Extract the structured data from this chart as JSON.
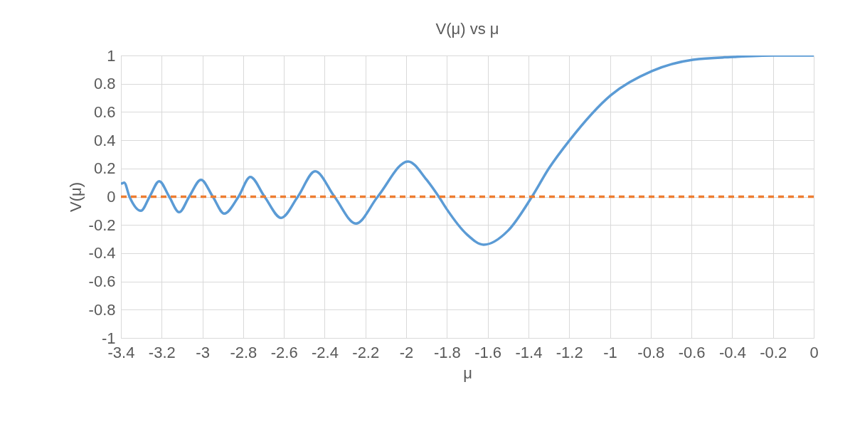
{
  "chart_data": {
    "type": "line",
    "title": "V(μ) vs μ",
    "xlabel": "μ",
    "ylabel": "V(μ)",
    "xlim": [
      -3.4,
      0
    ],
    "xticks": [
      -3.4,
      -3.2,
      -3,
      -2.8,
      -2.6,
      -2.4,
      -2.2,
      -2,
      -1.8,
      -1.6,
      -1.4,
      -1.2,
      -1,
      -0.8,
      -0.6,
      -0.4,
      -0.2,
      0
    ],
    "ylim": [
      -1,
      1
    ],
    "yticks": [
      -1,
      -0.8,
      -0.6,
      -0.4,
      -0.2,
      0,
      0.2,
      0.4,
      0.6,
      0.8,
      1
    ],
    "grid": true,
    "legend": false,
    "marker": "none",
    "series": [
      {
        "color": "#5b9bd5",
        "line_style": "solid",
        "x": [
          -3.4,
          -3.384,
          -3.358,
          -3.302,
          -3.259,
          -3.212,
          -3.163,
          -3.114,
          -3.065,
          -3.007,
          -2.949,
          -2.893,
          -2.823,
          -2.765,
          -2.695,
          -2.614,
          -2.532,
          -2.447,
          -2.352,
          -2.247,
          -2.14,
          -1.991,
          -1.9,
          -1.84,
          -1.8,
          -1.7,
          -1.62,
          -1.5,
          -1.383,
          -1.3,
          -1.198,
          -0.995,
          -0.794,
          -0.593,
          -0.391,
          -0.2,
          0
        ],
        "values": [
          0.09,
          0.1,
          0,
          -0.1,
          0,
          0.11,
          0,
          -0.11,
          0,
          0.12,
          0,
          -0.12,
          0,
          0.14,
          0,
          -0.15,
          0,
          0.18,
          0,
          -0.19,
          0,
          0.25,
          0.12,
          0,
          -0.09,
          -0.27,
          -0.34,
          -0.24,
          0,
          0.2,
          0.4,
          0.72,
          0.89,
          0.97,
          0.99,
          1,
          1
        ]
      },
      {
        "color": "#ed7d31",
        "line_style": "dashed",
        "x": [
          -3.4,
          0
        ],
        "values": [
          0,
          0
        ]
      }
    ]
  }
}
